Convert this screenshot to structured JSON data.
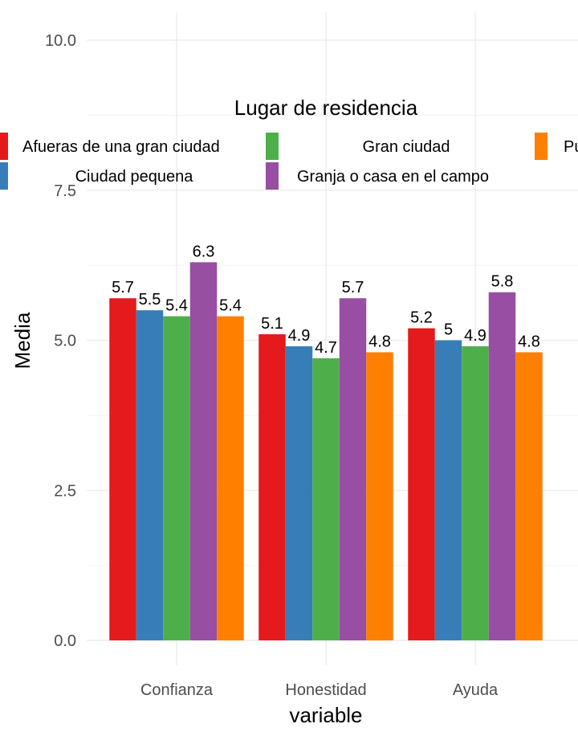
{
  "chart_data": {
    "type": "bar",
    "title": "",
    "xlabel": "variable",
    "ylabel": "Media",
    "ylim": [
      0,
      10
    ],
    "yticks": [
      "0.0",
      "2.5",
      "5.0",
      "7.5",
      "10.0"
    ],
    "categories": [
      "Confianza",
      "Honestidad",
      "Ayuda"
    ],
    "grid": true,
    "legend": {
      "title": "Lugar de residencia",
      "placement": "top",
      "entries": [
        {
          "name": "Afueras de una gran ciudad",
          "color": "#E41A1C"
        },
        {
          "name": "Gran ciudad",
          "color": "#4DAF4A"
        },
        {
          "name": "Pueblo",
          "color": "#FF7F00"
        },
        {
          "name": "Ciudad pequena",
          "color": "#377EB8"
        },
        {
          "name": "Granja o casa en el campo",
          "color": "#984EA3"
        }
      ]
    },
    "series": [
      {
        "name": "Afueras de una gran ciudad",
        "color": "#E41A1C",
        "values": [
          5.7,
          5.1,
          5.2
        ],
        "labels": [
          "5.7",
          "5.1",
          "5.2"
        ]
      },
      {
        "name": "Ciudad pequena",
        "color": "#377EB8",
        "values": [
          5.5,
          4.9,
          5.0
        ],
        "labels": [
          "5.5",
          "4.9",
          "5"
        ]
      },
      {
        "name": "Gran ciudad",
        "color": "#4DAF4A",
        "values": [
          5.4,
          4.7,
          4.9
        ],
        "labels": [
          "5.4",
          "4.7",
          "4.9"
        ]
      },
      {
        "name": "Granja o casa en el campo",
        "color": "#984EA3",
        "values": [
          6.3,
          5.7,
          5.8
        ],
        "labels": [
          "6.3",
          "5.7",
          "5.8"
        ]
      },
      {
        "name": "Pueblo",
        "color": "#FF7F00",
        "values": [
          5.4,
          4.8,
          4.8
        ],
        "labels": [
          "5.4",
          "4.8",
          "4.8"
        ]
      }
    ]
  }
}
